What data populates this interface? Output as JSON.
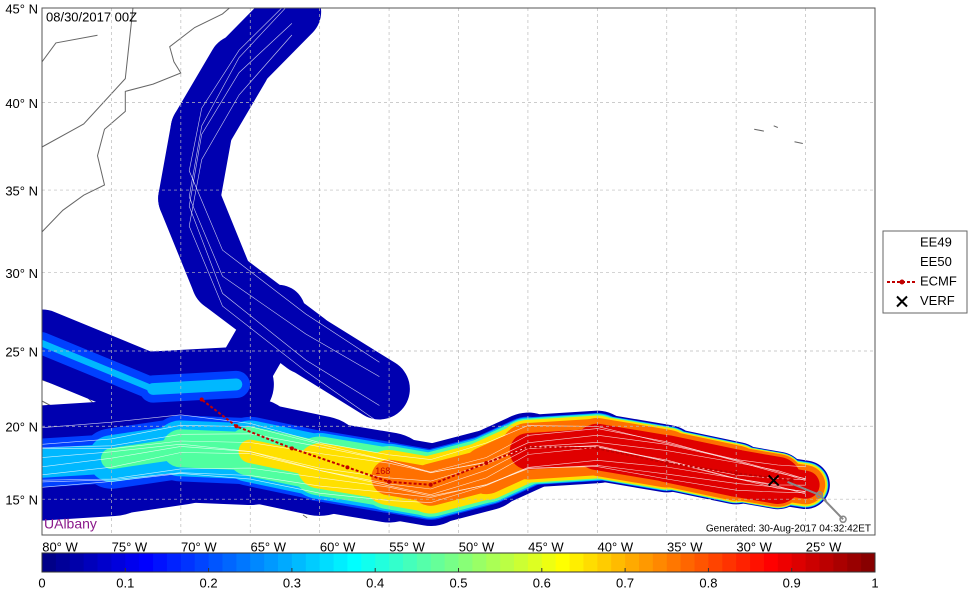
{
  "map": {
    "valid_time": "08/30/2017 00Z",
    "credit": "UAlbany",
    "generated": "Generated: 30-Aug-2017 04:32:42ET",
    "xlim": [
      -80,
      -20
    ],
    "ylim": [
      12.5,
      45
    ],
    "xticks": [
      {
        "value": -80,
        "label": "80° W"
      },
      {
        "value": -75,
        "label": "75° W"
      },
      {
        "value": -70,
        "label": "70° W"
      },
      {
        "value": -65,
        "label": "65° W"
      },
      {
        "value": -60,
        "label": "60° W"
      },
      {
        "value": -55,
        "label": "55° W"
      },
      {
        "value": -50,
        "label": "50° W"
      },
      {
        "value": -45,
        "label": "45° W"
      },
      {
        "value": -40,
        "label": "40° W"
      },
      {
        "value": -35,
        "label": "35° W"
      },
      {
        "value": -30,
        "label": "30° W"
      },
      {
        "value": -25,
        "label": "25° W"
      }
    ],
    "yticks": [
      {
        "value": 15,
        "label": "15° N"
      },
      {
        "value": 20,
        "label": "20° N"
      },
      {
        "value": 25,
        "label": "25° N"
      },
      {
        "value": 30,
        "label": "30° N"
      },
      {
        "value": 35,
        "label": "35° N"
      },
      {
        "value": 40,
        "label": "40° N"
      },
      {
        "value": 45,
        "label": "45° N"
      }
    ],
    "legend": [
      "EE49",
      "EE50",
      "ECMF",
      "VERF"
    ],
    "ecmf_track": {
      "lon": [
        -26,
        -30,
        -35,
        -40,
        -45,
        -48,
        -52,
        -55,
        -58,
        -62,
        -66,
        -68.5
      ],
      "lat": [
        16.3,
        16.8,
        17.5,
        18.5,
        18.6,
        17.5,
        16.0,
        16.2,
        17.2,
        18.5,
        20,
        21.8
      ]
    },
    "track_label": "168",
    "verf": {
      "lon": -27.3,
      "lat": 16.3
    },
    "colorbar": {
      "lim": [
        0,
        1
      ],
      "ticks": [
        0,
        0.1,
        0.2,
        0.3,
        0.4,
        0.5,
        0.6,
        0.7,
        0.8,
        0.9,
        1
      ]
    }
  }
}
